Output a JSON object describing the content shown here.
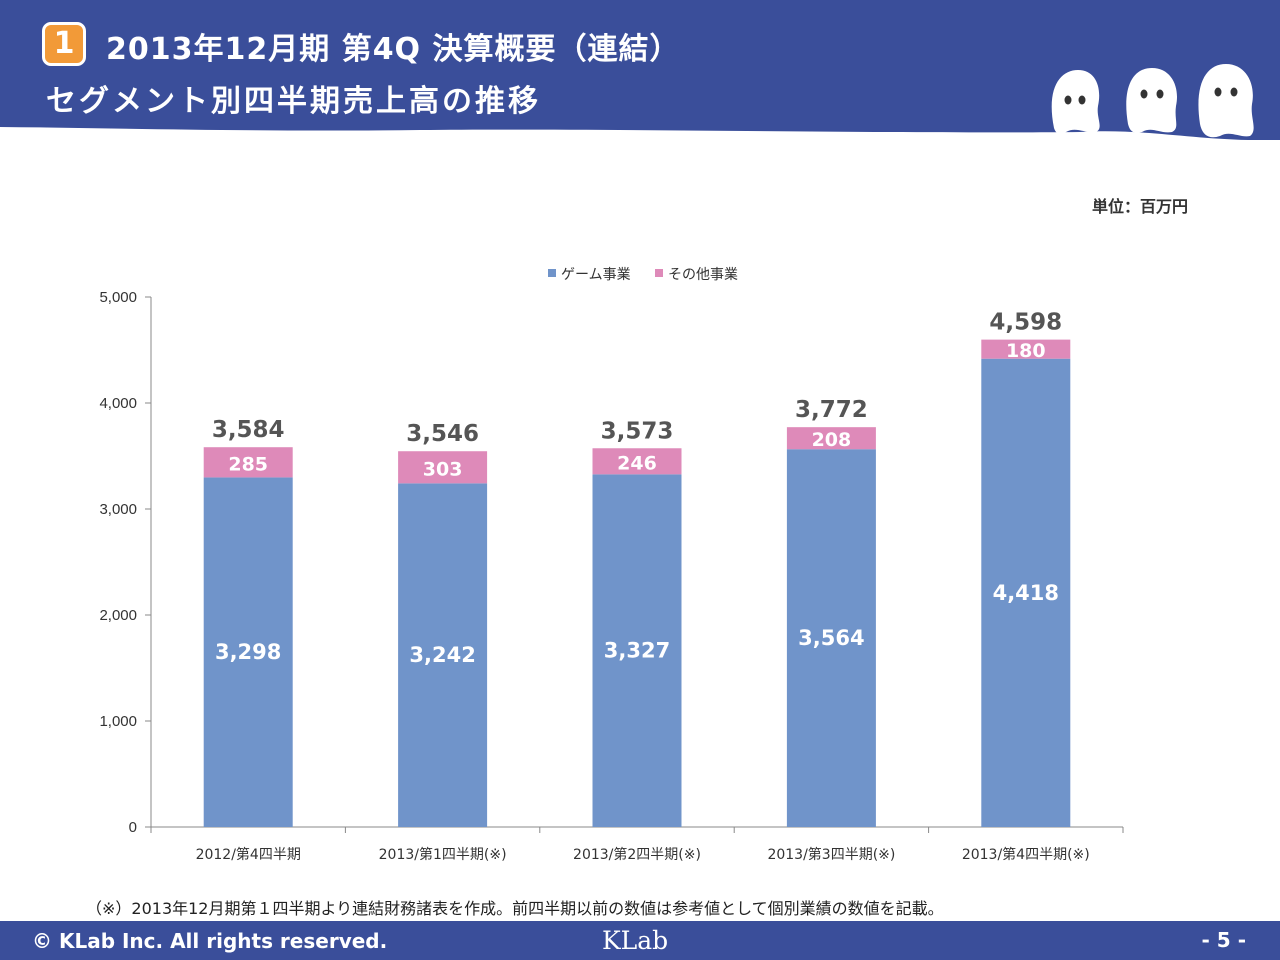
{
  "header": {
    "badge": "1",
    "title_line1": "2013年12月期  第4Q 決算概要（連結）",
    "title_line2": "セグメント別四半期売上高の推移"
  },
  "unit_label": "単位：百万円",
  "colors": {
    "header_bg": "#3a4e9a",
    "badge_bg": "#f29a38",
    "game_series": "#7094ca",
    "other_series": "#de8ab9",
    "footer_bg": "#3a4e9a"
  },
  "chart_data": {
    "type": "bar",
    "stacked": true,
    "categories": [
      "2012/第4四半期",
      "2013/第1四半期(※)",
      "2013/第2四半期(※)",
      "2013/第3四半期(※)",
      "2013/第4四半期(※)"
    ],
    "series": [
      {
        "name": "ゲーム事業",
        "color": "#7094ca",
        "values": [
          3298,
          3242,
          3327,
          3564,
          4418
        ],
        "labels": [
          "3,298",
          "3,242",
          "3,327",
          "3,564",
          "4,418"
        ]
      },
      {
        "name": "その他事業",
        "color": "#de8ab9",
        "values": [
          285,
          303,
          246,
          208,
          180
        ],
        "labels": [
          "285",
          "303",
          "246",
          "208",
          "180"
        ]
      }
    ],
    "totals": [
      3584,
      3546,
      3573,
      3772,
      4598
    ],
    "total_labels": [
      "3,584",
      "3,546",
      "3,573",
      "3,772",
      "4,598"
    ],
    "ylim": [
      0,
      5000
    ],
    "yticks": [
      0,
      1000,
      2000,
      3000,
      4000,
      5000
    ],
    "ytick_labels": [
      "0",
      "1,000",
      "2,000",
      "3,000",
      "4,000",
      "5,000"
    ],
    "legend_position": "top-center",
    "grid": false
  },
  "note": "（※）2013年12月期第１四半期より連結財務諸表を作成。前四半期以前の数値は参考値として個別業績の数値を記載。",
  "footer": {
    "copyright": "© KLab Inc. All rights reserved.",
    "logo": "KLab",
    "page": "- 5 -"
  }
}
